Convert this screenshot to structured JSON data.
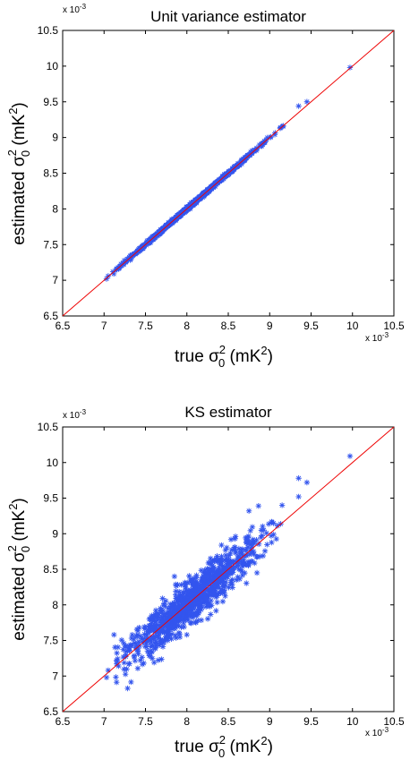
{
  "chart_data": [
    {
      "type": "scatter",
      "title": "Unit variance estimator",
      "xlabel": {
        "pre": "true σ",
        "sup": "2",
        "sub": "0",
        "post": " (mK",
        "unit_sup": "2",
        "close": ")"
      },
      "ylabel": {
        "pre": "estimated σ",
        "sup": "2",
        "sub": "0",
        "post": " (mK",
        "unit_sup": "2",
        "close": ")"
      },
      "x_multiplier": {
        "base": "x 10",
        "exp": "-3"
      },
      "y_multiplier": {
        "base": "x 10",
        "exp": "-3"
      },
      "xlim": [
        6.5,
        10.5
      ],
      "ylim": [
        6.5,
        10.5
      ],
      "xticks": [
        "6.5",
        "7",
        "7.5",
        "8",
        "8.5",
        "9",
        "9.5",
        "10",
        "10.5"
      ],
      "yticks": [
        "6.5",
        "7",
        "7.5",
        "8",
        "8.5",
        "9",
        "9.5",
        "10",
        "10.5"
      ],
      "grid": false,
      "series": [
        {
          "marker": "asterisk",
          "color": "#3355ee",
          "x_range": [
            7.03,
            9.97
          ],
          "scatter_sd": 0.012,
          "outlier_points": [
            [
              7.03,
              7.02
            ],
            [
              7.05,
              7.06
            ],
            [
              7.15,
              7.16
            ],
            [
              9.13,
              9.14
            ],
            [
              9.35,
              9.44
            ],
            [
              9.45,
              9.5
            ],
            [
              9.97,
              9.98
            ]
          ]
        },
        {
          "type": "line",
          "color": "#ee0000",
          "x": [
            6.5,
            10.5
          ],
          "y": [
            6.5,
            10.5
          ]
        }
      ]
    },
    {
      "type": "scatter",
      "title": "KS estimator",
      "xlabel": {
        "pre": "true σ",
        "sup": "2",
        "sub": "0",
        "post": " (mK",
        "unit_sup": "2",
        "close": ")"
      },
      "ylabel": {
        "pre": "estimated σ",
        "sup": "2",
        "sub": "0",
        "post": " (mK",
        "unit_sup": "2",
        "close": ")"
      },
      "x_multiplier": {
        "base": "x 10",
        "exp": "-3"
      },
      "y_multiplier": {
        "base": "x 10",
        "exp": "-3"
      },
      "xlim": [
        6.5,
        10.5
      ],
      "ylim": [
        6.5,
        10.5
      ],
      "xticks": [
        "6.5",
        "7",
        "7.5",
        "8",
        "8.5",
        "9",
        "9.5",
        "10",
        "10.5"
      ],
      "yticks": [
        "6.5",
        "7",
        "7.5",
        "8",
        "8.5",
        "9",
        "9.5",
        "10",
        "10.5"
      ],
      "grid": false,
      "series": [
        {
          "marker": "asterisk",
          "color": "#3355ee",
          "x_range": [
            7.03,
            9.97
          ],
          "scatter_sd": 0.16,
          "outlier_points": [
            [
              7.03,
              6.98
            ],
            [
              7.05,
              7.08
            ],
            [
              7.15,
              7.22
            ],
            [
              9.35,
              9.78
            ],
            [
              9.45,
              9.72
            ],
            [
              9.35,
              9.52
            ],
            [
              9.97,
              10.09
            ],
            [
              8.75,
              9.32
            ],
            [
              9.15,
              9.4
            ],
            [
              7.85,
              8.4
            ]
          ]
        },
        {
          "type": "line",
          "color": "#ee0000",
          "x": [
            6.5,
            10.5
          ],
          "y": [
            6.5,
            10.5
          ]
        }
      ]
    }
  ]
}
